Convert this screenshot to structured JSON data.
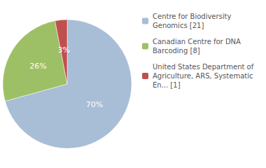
{
  "chart_data": {
    "type": "pie",
    "categories": [
      "Centre for Biodiversity\nGenomics [21]",
      "Canadian Centre for DNA\nBarcoding [8]",
      "United States Department of\nAgriculture, ARS, Systematic\nEn... [1]"
    ],
    "values": [
      70,
      26,
      3
    ],
    "value_labels": [
      "70%",
      "26%",
      "3%"
    ],
    "data_labels": true,
    "colors": [
      "#a8bdd6",
      "#9dc066",
      "#c0504d"
    ],
    "legend": "right"
  }
}
